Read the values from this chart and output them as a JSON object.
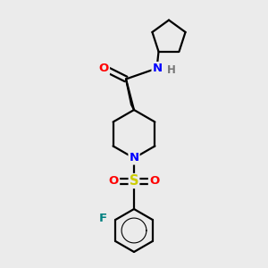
{
  "background_color": "#ebebeb",
  "bond_color": "#000000",
  "atom_colors": {
    "O": "#ff0000",
    "N": "#0000ff",
    "S": "#cccc00",
    "F": "#008080",
    "H": "#777777",
    "C": "#000000"
  },
  "figsize": [
    3.0,
    3.0
  ],
  "dpi": 100,
  "lw": 1.6,
  "fontsize": 9.5
}
